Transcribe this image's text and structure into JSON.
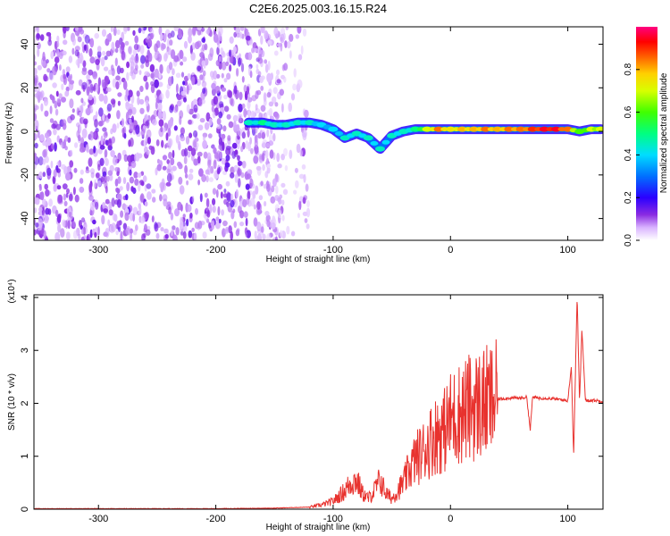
{
  "figure": {
    "title": "C2E6.2025.003.16.15.R24"
  },
  "chart_data": [
    {
      "type": "heatmap",
      "title": "C2E6.2025.003.16.15.R24",
      "xlabel": "Height of straight line (km)",
      "ylabel": "Frequency (Hz)",
      "xlim": [
        -355,
        130
      ],
      "ylim": [
        -50,
        48
      ],
      "xticks": [
        -300,
        -200,
        -100,
        0,
        100
      ],
      "yticks": [
        -40,
        -20,
        0,
        20,
        40
      ],
      "grid": false,
      "colormap": "rainbow (white -> purple -> blue -> cyan -> green -> yellow -> orange -> red -> magenta)",
      "colorbar": {
        "label": "Normalized spectral amplitude",
        "range": [
          0,
          1
        ],
        "ticks": [
          0.0,
          0.2,
          0.4,
          0.6,
          0.8
        ],
        "tick_labels": [
          "0.0",
          "0.2",
          "0.4",
          "0.6",
          "0.8"
        ]
      },
      "features": {
        "noise_region_x": [
          -355,
          -140
        ],
        "signal_trace": [
          {
            "x": -172,
            "y": 4,
            "amp": 0.45
          },
          {
            "x": -160,
            "y": 4,
            "amp": 0.5
          },
          {
            "x": -150,
            "y": 3,
            "amp": 0.45
          },
          {
            "x": -140,
            "y": 3,
            "amp": 0.45
          },
          {
            "x": -130,
            "y": 4,
            "amp": 0.45
          },
          {
            "x": -120,
            "y": 4,
            "amp": 0.45
          },
          {
            "x": -110,
            "y": 3,
            "amp": 0.4
          },
          {
            "x": -100,
            "y": 1,
            "amp": 0.4
          },
          {
            "x": -90,
            "y": -3,
            "amp": 0.45
          },
          {
            "x": -80,
            "y": -1,
            "amp": 0.45
          },
          {
            "x": -70,
            "y": -3,
            "amp": 0.45
          },
          {
            "x": -60,
            "y": -8,
            "amp": 0.45
          },
          {
            "x": -50,
            "y": -2,
            "amp": 0.45
          },
          {
            "x": -40,
            "y": 0,
            "amp": 0.45
          },
          {
            "x": -30,
            "y": 1,
            "amp": 0.5
          },
          {
            "x": -20,
            "y": 1,
            "amp": 0.7
          },
          {
            "x": -10,
            "y": 1,
            "amp": 0.85
          },
          {
            "x": 0,
            "y": 1,
            "amp": 0.75
          },
          {
            "x": 10,
            "y": 1,
            "amp": 0.8
          },
          {
            "x": 20,
            "y": 1,
            "amp": 0.8
          },
          {
            "x": 30,
            "y": 1,
            "amp": 0.85
          },
          {
            "x": 40,
            "y": 1,
            "amp": 0.8
          },
          {
            "x": 50,
            "y": 1,
            "amp": 0.85
          },
          {
            "x": 60,
            "y": 1,
            "amp": 0.85
          },
          {
            "x": 70,
            "y": 1,
            "amp": 0.9
          },
          {
            "x": 80,
            "y": 1,
            "amp": 0.95
          },
          {
            "x": 90,
            "y": 1,
            "amp": 0.95
          },
          {
            "x": 100,
            "y": 1,
            "amp": 0.85
          },
          {
            "x": 110,
            "y": 0,
            "amp": 0.6
          },
          {
            "x": 120,
            "y": 1,
            "amp": 0.7
          },
          {
            "x": 128,
            "y": 1,
            "amp": 0.7
          }
        ]
      }
    },
    {
      "type": "line",
      "xlabel": "Height of straight line (km)",
      "ylabel": "SNR (10 * v/v)",
      "y_multiplier_label": "(x10⁴)",
      "xlim": [
        -355,
        130
      ],
      "ylim": [
        0,
        4.05
      ],
      "xticks": [
        -300,
        -200,
        -100,
        0,
        100
      ],
      "yticks": [
        0,
        1,
        2,
        3,
        4
      ],
      "grid": false,
      "series": [
        {
          "color": "#e8322e",
          "x": [
            -355,
            -300,
            -250,
            -200,
            -150,
            -120,
            -110,
            -100,
            -95,
            -90,
            -85,
            -80,
            -75,
            -70,
            -65,
            -60,
            -55,
            -50,
            -45,
            -40,
            -35,
            -30,
            -25,
            -20,
            -15,
            -10,
            -5,
            0,
            5,
            10,
            20,
            30,
            40,
            50,
            60,
            65,
            68,
            70,
            75,
            80,
            90,
            100,
            103,
            105,
            107,
            108,
            110,
            112,
            115,
            120,
            130
          ],
          "y": [
            0.01,
            0.01,
            0.01,
            0.01,
            0.02,
            0.04,
            0.08,
            0.15,
            0.25,
            0.35,
            0.5,
            0.55,
            0.3,
            0.2,
            0.35,
            0.55,
            0.3,
            0.2,
            0.35,
            0.5,
            0.75,
            0.95,
            1.05,
            1.2,
            1.35,
            1.45,
            1.5,
            1.7,
            1.78,
            1.85,
            1.95,
            2.0,
            2.08,
            2.1,
            2.1,
            2.12,
            1.5,
            2.12,
            2.1,
            2.1,
            2.08,
            2.05,
            2.7,
            1.0,
            3.1,
            4.05,
            2.0,
            3.4,
            2.05,
            2.06,
            2.04
          ]
        }
      ]
    }
  ]
}
